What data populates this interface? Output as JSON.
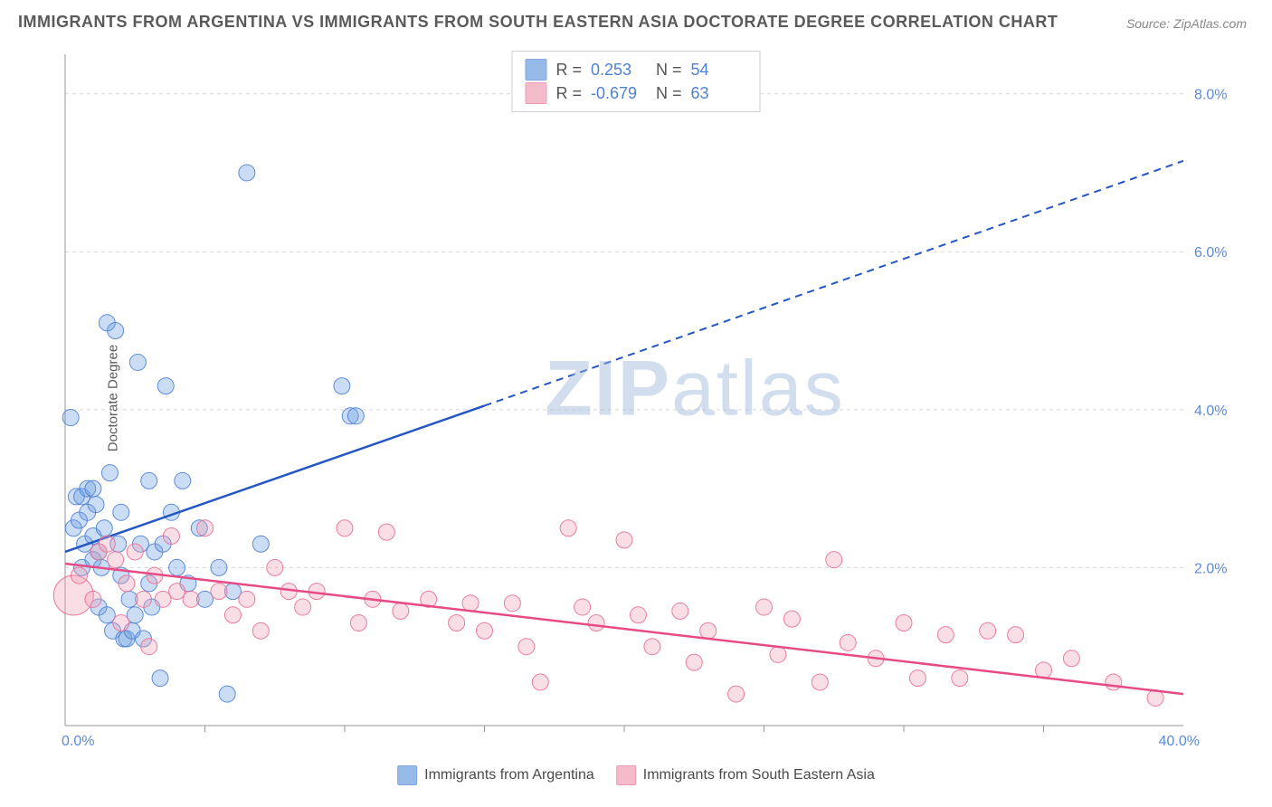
{
  "title": "IMMIGRANTS FROM ARGENTINA VS IMMIGRANTS FROM SOUTH EASTERN ASIA DOCTORATE DEGREE CORRELATION CHART",
  "source": "Source: ZipAtlas.com",
  "ylabel": "Doctorate Degree",
  "watermark_zip": "ZIP",
  "watermark_atlas": "atlas",
  "chart": {
    "type": "scatter",
    "xlim": [
      0,
      40
    ],
    "ylim": [
      0,
      8.5
    ],
    "x_ticks_major": [
      0,
      40
    ],
    "x_ticks_minor": [
      5,
      10,
      15,
      20,
      25,
      30,
      35
    ],
    "y_gridlines": [
      2,
      4,
      6,
      8
    ],
    "y_tick_labels": [
      "2.0%",
      "4.0%",
      "6.0%",
      "8.0%"
    ],
    "x_tick_labels": [
      "0.0%",
      "40.0%"
    ],
    "grid_color": "#d8d8d8",
    "axis_color": "#969696",
    "background_color": "#ffffff",
    "tick_label_color": "#5b8bd4",
    "tick_label_fontsize": 16,
    "marker_radius": 9,
    "marker_opacity": 0.35,
    "marker_stroke_opacity": 0.9,
    "line_width": 2.5,
    "series": [
      {
        "name": "Immigrants from Argentina",
        "color": "#6b9fe0",
        "stroke": "#4f81d6",
        "line_color": "#2456c4",
        "R": "0.253",
        "N": "54",
        "trend": {
          "x0": 0,
          "y0": 2.2,
          "x1_solid": 15,
          "y1_solid": 4.05,
          "x1_dash": 40,
          "y1_dash": 7.15
        },
        "points": [
          [
            0.2,
            3.9
          ],
          [
            0.3,
            2.5
          ],
          [
            0.4,
            2.9
          ],
          [
            0.5,
            2.6
          ],
          [
            0.6,
            2.0
          ],
          [
            0.6,
            2.9
          ],
          [
            0.7,
            2.3
          ],
          [
            0.8,
            2.7
          ],
          [
            0.8,
            3.0
          ],
          [
            1.0,
            2.1
          ],
          [
            1.0,
            3.0
          ],
          [
            1.0,
            2.4
          ],
          [
            1.1,
            2.8
          ],
          [
            1.2,
            1.5
          ],
          [
            1.2,
            2.2
          ],
          [
            1.3,
            2.0
          ],
          [
            1.4,
            2.5
          ],
          [
            1.5,
            1.4
          ],
          [
            1.5,
            5.1
          ],
          [
            1.6,
            3.2
          ],
          [
            1.7,
            1.2
          ],
          [
            1.8,
            5.0
          ],
          [
            1.9,
            2.3
          ],
          [
            2.0,
            1.9
          ],
          [
            2.0,
            2.7
          ],
          [
            2.1,
            1.1
          ],
          [
            2.2,
            1.1
          ],
          [
            2.3,
            1.6
          ],
          [
            2.4,
            1.2
          ],
          [
            2.5,
            1.4
          ],
          [
            2.6,
            4.6
          ],
          [
            2.7,
            2.3
          ],
          [
            2.8,
            1.1
          ],
          [
            3.0,
            1.8
          ],
          [
            3.0,
            3.1
          ],
          [
            3.1,
            1.5
          ],
          [
            3.2,
            2.2
          ],
          [
            3.4,
            0.6
          ],
          [
            3.5,
            2.3
          ],
          [
            3.6,
            4.3
          ],
          [
            3.8,
            2.7
          ],
          [
            4.0,
            2.0
          ],
          [
            4.2,
            3.1
          ],
          [
            4.4,
            1.8
          ],
          [
            4.8,
            2.5
          ],
          [
            5.0,
            1.6
          ],
          [
            5.5,
            2.0
          ],
          [
            5.8,
            0.4
          ],
          [
            6.0,
            1.7
          ],
          [
            6.5,
            7.0
          ],
          [
            7.0,
            2.3
          ],
          [
            9.9,
            4.3
          ],
          [
            10.2,
            3.92
          ],
          [
            10.4,
            3.92
          ]
        ]
      },
      {
        "name": "Immigrants from South Eastern Asia",
        "color": "#f0a0b4",
        "stroke": "#e97095",
        "line_color": "#e64b86",
        "R": "-0.679",
        "N": "63",
        "trend": {
          "x0": 0,
          "y0": 2.05,
          "x1_solid": 40,
          "y1_solid": 0.4,
          "x1_dash": 40,
          "y1_dash": 0.4
        },
        "points": [
          [
            0.5,
            1.9
          ],
          [
            1.0,
            1.6
          ],
          [
            1.2,
            2.2
          ],
          [
            1.5,
            2.3
          ],
          [
            1.8,
            2.1
          ],
          [
            2.0,
            1.3
          ],
          [
            2.2,
            1.8
          ],
          [
            2.5,
            2.2
          ],
          [
            2.8,
            1.6
          ],
          [
            3.0,
            1.0
          ],
          [
            3.2,
            1.9
          ],
          [
            3.5,
            1.6
          ],
          [
            3.8,
            2.4
          ],
          [
            4.0,
            1.7
          ],
          [
            4.5,
            1.6
          ],
          [
            5.0,
            2.5
          ],
          [
            5.5,
            1.7
          ],
          [
            6.0,
            1.4
          ],
          [
            6.5,
            1.6
          ],
          [
            7.0,
            1.2
          ],
          [
            7.5,
            2.0
          ],
          [
            8.0,
            1.7
          ],
          [
            8.5,
            1.5
          ],
          [
            9.0,
            1.7
          ],
          [
            10.0,
            2.5
          ],
          [
            10.5,
            1.3
          ],
          [
            11.0,
            1.6
          ],
          [
            11.5,
            2.45
          ],
          [
            12.0,
            1.45
          ],
          [
            13.0,
            1.6
          ],
          [
            14.0,
            1.3
          ],
          [
            14.5,
            1.55
          ],
          [
            15.0,
            1.2
          ],
          [
            16.0,
            1.55
          ],
          [
            16.5,
            1.0
          ],
          [
            17.0,
            0.55
          ],
          [
            18.0,
            2.5
          ],
          [
            18.5,
            1.5
          ],
          [
            19.0,
            1.3
          ],
          [
            20.0,
            2.35
          ],
          [
            20.5,
            1.4
          ],
          [
            21.0,
            1.0
          ],
          [
            22.0,
            1.45
          ],
          [
            22.5,
            0.8
          ],
          [
            23.0,
            1.2
          ],
          [
            24.0,
            0.4
          ],
          [
            25.0,
            1.5
          ],
          [
            25.5,
            0.9
          ],
          [
            26.0,
            1.35
          ],
          [
            27.0,
            0.55
          ],
          [
            27.5,
            2.1
          ],
          [
            28.0,
            1.05
          ],
          [
            29.0,
            0.85
          ],
          [
            30.0,
            1.3
          ],
          [
            30.5,
            0.6
          ],
          [
            31.5,
            1.15
          ],
          [
            32.0,
            0.6
          ],
          [
            33.0,
            1.2
          ],
          [
            34.0,
            1.15
          ],
          [
            35.0,
            0.7
          ],
          [
            36.0,
            0.85
          ],
          [
            37.5,
            0.55
          ],
          [
            39.0,
            0.35
          ]
        ],
        "big_point": [
          0.3,
          1.65,
          22
        ]
      }
    ]
  },
  "legend": {
    "r_label": "R =",
    "n_label": "N ="
  }
}
